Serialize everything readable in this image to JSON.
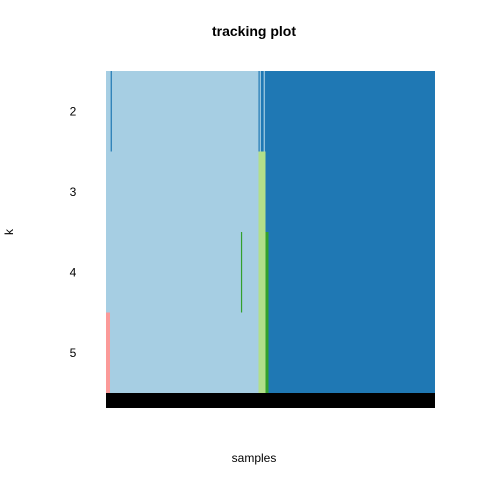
{
  "chart_data": {
    "type": "heatmap",
    "title": "tracking plot",
    "xlabel": "samples",
    "ylabel": "k",
    "y_categories": [
      "2",
      "3",
      "4",
      "5"
    ],
    "x_range": [
      0,
      100
    ],
    "palette": {
      "light_blue": "#a6cee3",
      "dark_blue": "#1f78b4",
      "light_green": "#b2df8a",
      "dark_green": "#33a02c",
      "pink": "#fb9a99",
      "bottom_band": "#000000"
    },
    "bottom_band": true,
    "rows": [
      {
        "k": "2",
        "segments": [
          {
            "start": 0,
            "end": 46.4,
            "color": "#a6cee3"
          },
          {
            "start": 46.4,
            "end": 100,
            "color": "#1f78b4"
          }
        ],
        "lines": [
          {
            "x": 1.6,
            "color": "#1f78b4"
          },
          {
            "x": 46.9,
            "color": "#a6cee3"
          },
          {
            "x": 48.1,
            "color": "#a6cee3"
          }
        ]
      },
      {
        "k": "3",
        "segments": [
          {
            "start": 0,
            "end": 46.4,
            "color": "#a6cee3"
          },
          {
            "start": 46.4,
            "end": 48.5,
            "color": "#b2df8a"
          },
          {
            "start": 48.5,
            "end": 100,
            "color": "#1f78b4"
          }
        ],
        "lines": []
      },
      {
        "k": "4",
        "segments": [
          {
            "start": 0,
            "end": 46.4,
            "color": "#a6cee3"
          },
          {
            "start": 46.4,
            "end": 48.5,
            "color": "#b2df8a"
          },
          {
            "start": 48.5,
            "end": 49.4,
            "color": "#33a02c"
          },
          {
            "start": 49.4,
            "end": 100,
            "color": "#1f78b4"
          }
        ],
        "lines": [
          {
            "x": 41.2,
            "color": "#33a02c"
          }
        ]
      },
      {
        "k": "5",
        "segments": [
          {
            "start": 0,
            "end": 1.2,
            "color": "#fb9a99"
          },
          {
            "start": 1.2,
            "end": 46.4,
            "color": "#a6cee3"
          },
          {
            "start": 46.4,
            "end": 48.5,
            "color": "#b2df8a"
          },
          {
            "start": 48.5,
            "end": 49.4,
            "color": "#33a02c"
          },
          {
            "start": 49.4,
            "end": 100,
            "color": "#1f78b4"
          }
        ],
        "lines": []
      }
    ]
  }
}
